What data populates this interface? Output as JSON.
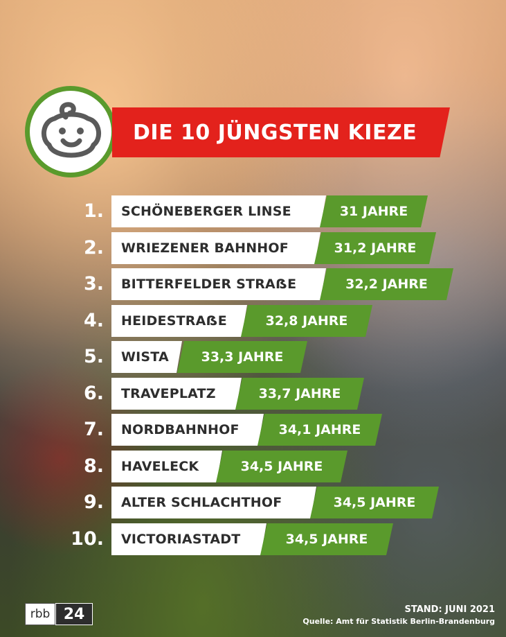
{
  "title": "DIE 10 JÜNGSTEN KIEZE",
  "icon": "baby-face-icon",
  "colors": {
    "title_banner": "#e3221c",
    "age_box": "#5a9a2c",
    "badge_ring": "#5a9a2c"
  },
  "ranking": [
    {
      "rank": "1.",
      "name": "SCHÖNEBERGER LINSE",
      "age": "31 JAHRE"
    },
    {
      "rank": "2.",
      "name": "WRIEZENER BAHNHOF",
      "age": "31,2 JAHRE"
    },
    {
      "rank": "3.",
      "name": "BITTERFELDER STRAẞE",
      "age": "32,2 JAHRE"
    },
    {
      "rank": "4.",
      "name": "HEIDESTRAẞE",
      "age": "32,8 JAHRE"
    },
    {
      "rank": "5.",
      "name": "WISTA",
      "age": "33,3 JAHRE"
    },
    {
      "rank": "6.",
      "name": "TRAVEPLATZ",
      "age": "33,7 JAHRE"
    },
    {
      "rank": "7.",
      "name": "NORDBAHNHOF",
      "age": "34,1 JAHRE"
    },
    {
      "rank": "8.",
      "name": "HAVELECK",
      "age": "34,5 JAHRE"
    },
    {
      "rank": "9.",
      "name": "ALTER SCHLACHTHOF",
      "age": "34,5 JAHRE"
    },
    {
      "rank": "10.",
      "name": "VICTORIASTADT",
      "age": "34,5 JAHRE"
    }
  ],
  "logo": {
    "part1": "rbb",
    "part2": "24"
  },
  "footer": {
    "stand": "STAND: JUNI 2021",
    "quelle": "Quelle: Amt für Statistik Berlin-Brandenburg"
  }
}
